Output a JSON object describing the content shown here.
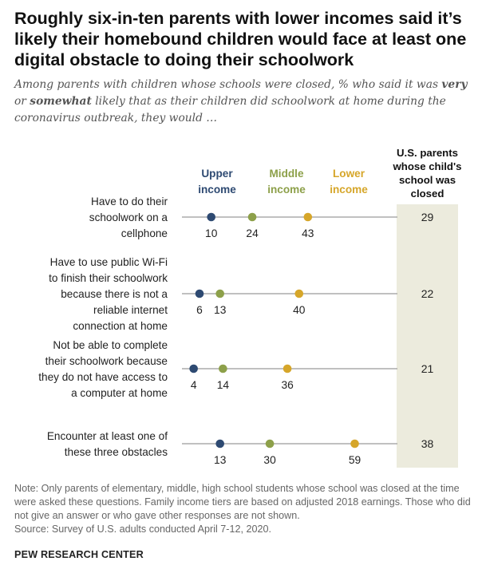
{
  "title": "Roughly six-in-ten parents with lower incomes said it’s likely their homebound children would face at least one digital obstacle to doing their schoolwork",
  "subtitle": {
    "part1": "Among parents with children whose schools were closed, % who said it was ",
    "very": "very",
    "or": " or ",
    "somewhat": "somewhat",
    "part2": " likely that as their children did schoolwork at home during the coronavirus outbreak, they would …"
  },
  "note": "Note: Only parents of elementary, middle, high school students whose school was closed at the time were asked these questions. Family income tiers are based on adjusted 2018 earnings. Those who did not give an answer or who gave other responses are not shown.",
  "source": "Source: Survey of U.S. adults conducted April 7-12, 2020.",
  "brand": "PEW RESEARCH CENTER",
  "colors": {
    "upper": "#2e4a72",
    "middle": "#8da04a",
    "lower": "#d6a62a",
    "line": "#9a9a9a",
    "us_panel": "#ecebdd"
  },
  "chart_data": {
    "type": "dot",
    "xlim": [
      0,
      100
    ],
    "series": [
      {
        "key": "upper",
        "name_line1": "Upper",
        "name_line2": "income",
        "values": [
          10,
          6,
          4,
          13
        ]
      },
      {
        "key": "middle",
        "name_line1": "Middle",
        "name_line2": "income",
        "values": [
          24,
          13,
          14,
          30
        ]
      },
      {
        "key": "lower",
        "name_line1": "Lower",
        "name_line2": "income",
        "values": [
          43,
          40,
          36,
          59
        ]
      }
    ],
    "categories": [
      {
        "lines": [
          "Have to do their",
          "schoolwork on a",
          "cellphone"
        ]
      },
      {
        "lines": [
          "Have to use public Wi-Fi",
          "to finish their schoolwork",
          "because there is not a",
          "reliable internet",
          "connection at home"
        ]
      },
      {
        "lines": [
          "Not be able to complete",
          "their schoolwork because",
          "they do not have access to",
          "a computer at home"
        ]
      },
      {
        "lines": [
          "Encounter at least one of",
          "these three obstacles"
        ]
      }
    ],
    "us_parents": {
      "header": [
        "U.S. parents",
        "whose child's",
        "school was",
        "closed"
      ],
      "values": [
        29,
        22,
        21,
        38
      ]
    }
  }
}
